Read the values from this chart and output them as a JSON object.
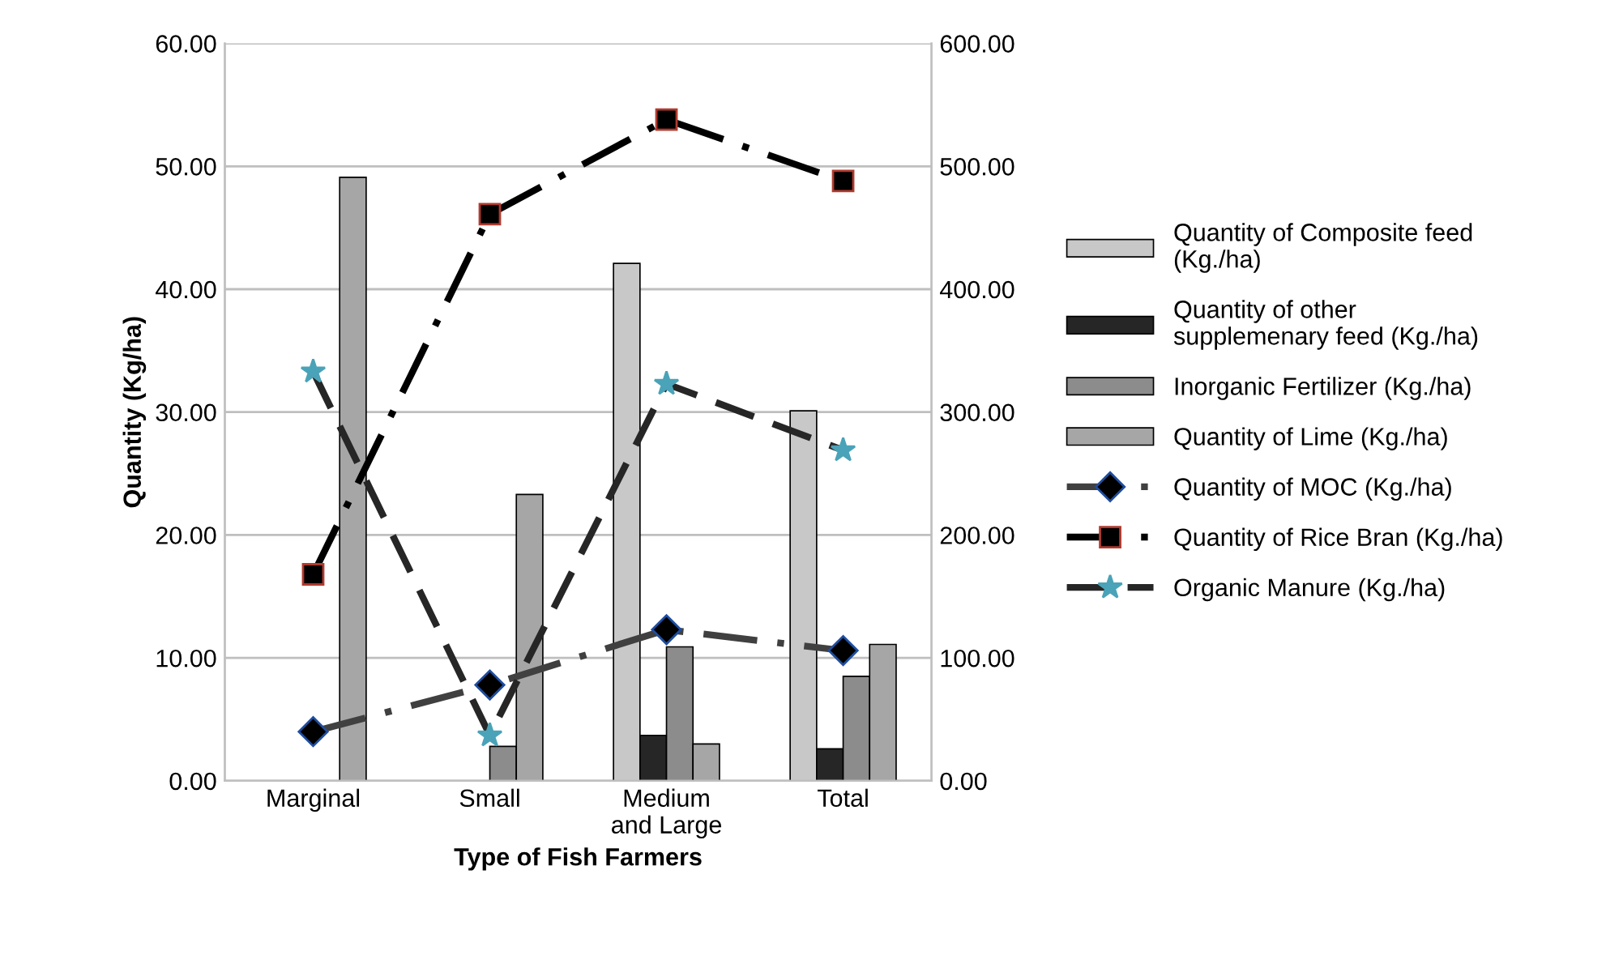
{
  "chart_data": {
    "type": "bar",
    "xlabel": "Type of Fish Farmers",
    "ylabel": "Quantity (Kg/ha)",
    "categories": [
      "Marginal",
      "Small",
      "Medium\nand Large",
      "Total"
    ],
    "series": [
      {
        "name": "Quantity of Composite feed\n(Kg./ha)",
        "color": "#c8c8c8",
        "axis": "y2",
        "values": [
          0,
          0,
          421,
          301
        ]
      },
      {
        "name": "Quantity of other\nsupplemenary feed (Kg./ha)",
        "color": "#262626",
        "axis": "y2",
        "values": [
          0,
          0,
          37,
          26
        ]
      },
      {
        "name": "Inorganic Fertilizer (Kg./ha)",
        "color": "#8c8c8c",
        "axis": "y2",
        "values": [
          0,
          28,
          109,
          85
        ]
      },
      {
        "name": "Quantity of Lime (Kg./ha)",
        "color": "#a6a6a6",
        "axis": "y2",
        "values": [
          491,
          233,
          30,
          111
        ]
      },
      {
        "name": "Quantity of MOC (Kg./ha)",
        "type": "line",
        "color": "#404040",
        "marker": "diamond",
        "line_style": "dashdot",
        "values": [
          4.0,
          7.8,
          12.3,
          10.6
        ]
      },
      {
        "name": "Quantity of Rice Bran (Kg./ha)",
        "type": "line",
        "color": "#000000",
        "marker": "square",
        "line_style": "dashdot",
        "values": [
          16.8,
          46.1,
          53.8,
          48.8
        ]
      },
      {
        "name": "Organic Manure (Kg./ha)",
        "type": "line",
        "color": "#262626",
        "marker": "star",
        "line_style": "dashed",
        "values": [
          33.3,
          3.7,
          32.3,
          26.9
        ]
      }
    ],
    "ylim": [
      0,
      60
    ],
    "yticks": [
      {
        "value": 0,
        "label": "0.00"
      },
      {
        "value": 10,
        "label": "10.00"
      },
      {
        "value": 20,
        "label": "20.00"
      },
      {
        "value": 30,
        "label": "30.00"
      },
      {
        "value": 40,
        "label": "40.00"
      },
      {
        "value": 50,
        "label": "50.00"
      },
      {
        "value": 60,
        "label": "60.00"
      }
    ],
    "y2lim": [
      0,
      600
    ],
    "y2ticks": [
      {
        "value": 0,
        "label": "0.00"
      },
      {
        "value": 100,
        "label": "100.00"
      },
      {
        "value": 200,
        "label": "200.00"
      },
      {
        "value": 300,
        "label": "300.00"
      },
      {
        "value": 400,
        "label": "400.00"
      },
      {
        "value": 500,
        "label": "500.00"
      },
      {
        "value": 600,
        "label": "600.00"
      }
    ],
    "grid": "y",
    "legend": "right"
  }
}
